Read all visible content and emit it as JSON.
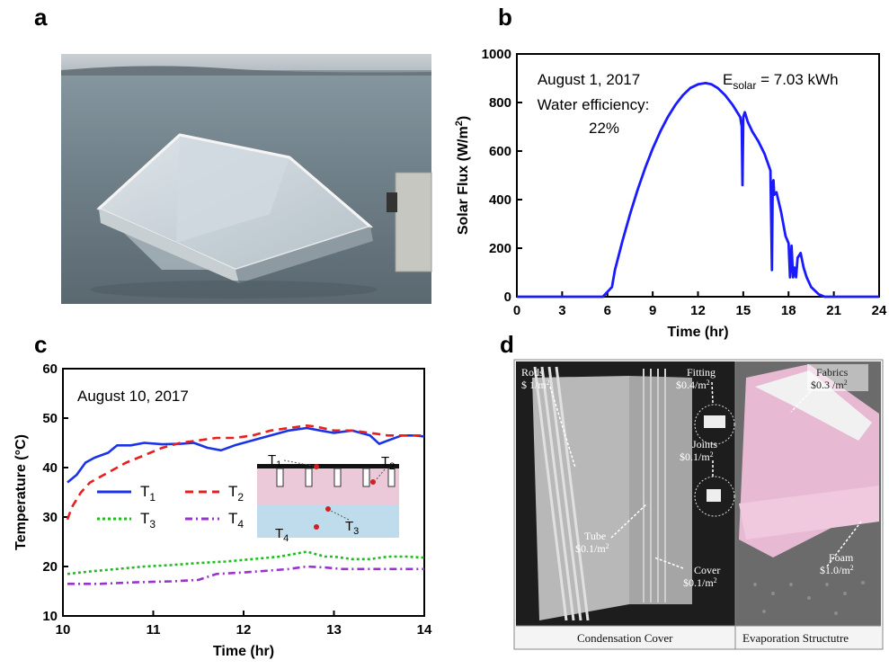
{
  "panels": {
    "a": "a",
    "b": "b",
    "c": "c",
    "d": "d"
  },
  "chart_data": [
    {
      "id": "b",
      "type": "line",
      "xlabel": "Time (hr)",
      "ylabel_main": "Solar Flux (W/m",
      "ylabel_sup": "2",
      "ylabel_end": ")",
      "xlim": [
        0,
        24
      ],
      "ylim": [
        0,
        1000
      ],
      "xticks": [
        0,
        3,
        6,
        9,
        12,
        15,
        18,
        21,
        24
      ],
      "yticks": [
        0,
        200,
        400,
        600,
        800,
        1000
      ],
      "color": "#1a1aff",
      "annotation_date": "August 1, 2017",
      "annotation_eff_label": "Water efficiency:",
      "annotation_eff_value": "22%",
      "energy_prefix": "E",
      "energy_sub": "solar",
      "energy_value": " = 7.03 kWh",
      "series": [
        {
          "x": [
            0,
            5.7,
            6.0,
            6.3,
            6.5,
            7.0,
            7.5,
            8.0,
            8.5,
            9.0,
            9.5,
            10.0,
            10.5,
            11.0,
            11.5,
            12.0,
            12.5,
            12.9,
            13.3,
            13.8,
            14.3,
            14.8,
            14.9,
            14.95,
            15.0,
            15.1,
            15.3,
            15.6,
            16.0,
            16.4,
            16.8,
            16.9,
            16.95,
            17.0,
            17.05,
            17.2,
            17.5,
            17.8,
            18.0,
            18.1,
            18.2,
            18.3,
            18.4,
            18.5,
            18.6,
            18.8,
            19.0,
            19.2,
            19.5,
            20.0,
            20.4,
            21.0,
            24.0
          ],
          "y": [
            0,
            0,
            20,
            40,
            110,
            230,
            340,
            440,
            530,
            610,
            680,
            740,
            790,
            830,
            860,
            875,
            880,
            875,
            860,
            830,
            790,
            740,
            700,
            460,
            740,
            760,
            720,
            680,
            640,
            590,
            520,
            110,
            470,
            480,
            420,
            430,
            350,
            250,
            220,
            80,
            210,
            80,
            120,
            80,
            160,
            180,
            120,
            80,
            40,
            10,
            0,
            0,
            0
          ]
        }
      ]
    },
    {
      "id": "c",
      "type": "line",
      "xlabel": "Time (hr)",
      "ylabel": "Temperature (°C)",
      "xlim": [
        10,
        14
      ],
      "ylim": [
        10,
        60
      ],
      "xticks": [
        10,
        11,
        12,
        13,
        14
      ],
      "yticks": [
        10,
        20,
        30,
        40,
        50,
        60
      ],
      "annotation_date": "August 10, 2017",
      "series": [
        {
          "name": "T",
          "sub": "1",
          "color": "#1a33e6",
          "dash": "",
          "x": [
            10.05,
            10.15,
            10.25,
            10.35,
            10.5,
            10.6,
            10.75,
            10.9,
            11.1,
            11.3,
            11.45,
            11.6,
            11.75,
            11.9,
            12.1,
            12.3,
            12.5,
            12.7,
            12.85,
            13.0,
            13.2,
            13.4,
            13.5,
            13.6,
            13.75,
            13.9,
            14.0
          ],
          "y": [
            37,
            38.5,
            41,
            42,
            43,
            44.5,
            44.5,
            45,
            44.7,
            44.8,
            45,
            44,
            43.5,
            44.5,
            45.5,
            46.5,
            47.5,
            48,
            47.5,
            47,
            47.5,
            46.5,
            44.8,
            45.5,
            46.5,
            46.5,
            46.3
          ]
        },
        {
          "name": "T",
          "sub": "2",
          "color": "#e62020",
          "dash": "9,6",
          "x": [
            10.05,
            10.1,
            10.2,
            10.3,
            10.5,
            10.7,
            10.9,
            11.1,
            11.3,
            11.5,
            11.7,
            11.9,
            12.1,
            12.3,
            12.5,
            12.7,
            12.8,
            13.0,
            13.2,
            13.4,
            13.6,
            13.8,
            14.0
          ],
          "y": [
            29.5,
            32,
            35,
            37,
            39,
            41,
            42.5,
            44,
            45,
            45.5,
            46,
            46,
            46.5,
            47.5,
            48,
            48.5,
            48.3,
            47.5,
            47.5,
            47,
            46.5,
            46.5,
            46.5
          ]
        },
        {
          "name": "T",
          "sub": "3",
          "color": "#22bb22",
          "dash": "3,3",
          "x": [
            10.05,
            10.3,
            10.6,
            10.9,
            11.2,
            11.5,
            11.8,
            12.1,
            12.4,
            12.7,
            12.9,
            13.0,
            13.2,
            13.4,
            13.6,
            13.8,
            14.0
          ],
          "y": [
            18.5,
            19,
            19.5,
            20,
            20.3,
            20.7,
            21,
            21.5,
            22,
            23,
            22,
            22,
            21.5,
            21.5,
            22,
            22,
            21.8
          ]
        },
        {
          "name": "T",
          "sub": "4",
          "color": "#9933cc",
          "dash": "8,4,2,4",
          "x": [
            10.05,
            10.4,
            10.8,
            11.2,
            11.5,
            11.7,
            12.0,
            12.3,
            12.5,
            12.7,
            12.9,
            13.1,
            13.4,
            13.7,
            14.0
          ],
          "y": [
            16.5,
            16.5,
            16.8,
            17,
            17.3,
            18.5,
            18.8,
            19.2,
            19.5,
            20,
            19.8,
            19.5,
            19.5,
            19.5,
            19.5
          ]
        }
      ],
      "inset_labels": [
        {
          "name": "T",
          "sub": "1"
        },
        {
          "name": "T",
          "sub": "2"
        },
        {
          "name": "T",
          "sub": "3"
        },
        {
          "name": "T",
          "sub": "4"
        }
      ]
    }
  ],
  "photo_d": {
    "rods": "Rods",
    "rods_price": "$ 1/m",
    "fitting": "Fitting",
    "fitting_price": "$0.4/m",
    "joints": "Joints",
    "joints_price": "$0.1/m",
    "tube": "Tube",
    "tube_price": "$0.1/m",
    "cover": "Cover",
    "cover_price": "$0.1/m",
    "fabrics": "Fabrics",
    "fabrics_price": "$0.3 /m",
    "foam": "Foam",
    "foam_price": "$1.0/m",
    "sup2": "2",
    "caption_left": "Condensation Cover",
    "caption_right": "Evaporation Structutre"
  }
}
